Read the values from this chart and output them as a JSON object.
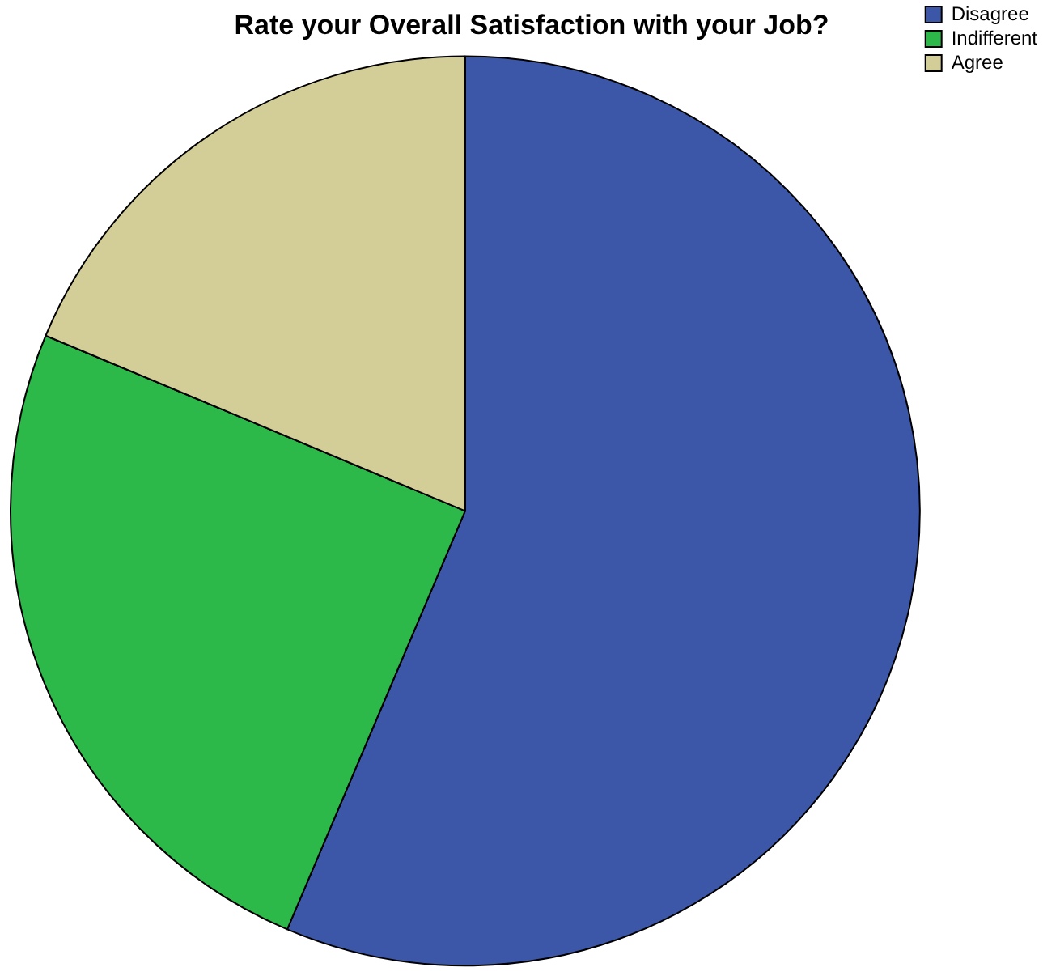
{
  "chart_data": {
    "type": "pie",
    "title": "Rate your Overall Satisfaction with your Job?",
    "categories": [
      "Disagree",
      "Indifferent",
      "Agree"
    ],
    "values": [
      56.4,
      24.9,
      18.7
    ],
    "colors": [
      "#3d57a8",
      "#2db84a",
      "#d3cd98"
    ],
    "legend": "top right"
  }
}
